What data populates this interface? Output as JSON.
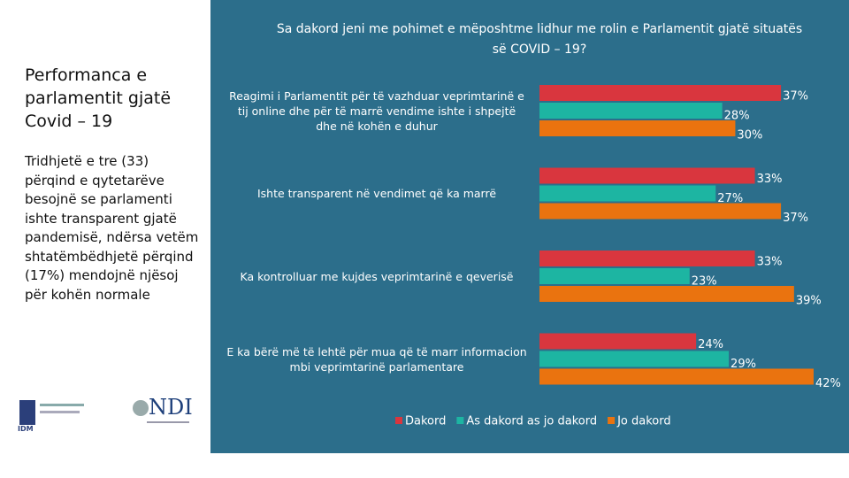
{
  "slide": {
    "title": "Performanca e parlamentit gjatë Covid – 19",
    "body": "Tridhjetë e tre (33) përqind e qytetarëve besojnë se parlamenti ishte transparent gjatë pandemisë, ndërsa vetëm shtatëmbëdhjetë përqind (17%) mendojnë njësoj për kohën normale",
    "logo_left": "IDM",
    "logo_right": "NDI"
  },
  "chart_data": {
    "type": "hbar",
    "title": "Sa dakord jeni me pohimet e mëposhtme lidhur me rolin e Parlamentit gjatë situatës së COVID – 19?",
    "categories": [
      "Reagimi i Parlamentit për të vazhduar veprimtarinë e tij online dhe për të marrë vendime ishte i shpejtë dhe në kohën e duhur",
      "Ishte transparent në vendimet që ka marrë",
      "Ka kontrolluar me kujdes veprimtarinë e qeverisë",
      "E ka bërë më të lehtë për mua që të marr informacion mbi veprimtarinë parlamentare"
    ],
    "series": [
      {
        "name": "Dakord",
        "color": "#d9363e",
        "values": [
          37,
          33,
          33,
          24
        ],
        "value_labels": [
          "37%",
          "33%",
          "33%",
          "24%"
        ]
      },
      {
        "name": "As dakord as jo dakord",
        "color": "#1db5a2",
        "values": [
          28,
          27,
          23,
          29
        ],
        "value_labels": [
          "28%",
          "27%",
          "23%",
          "29%"
        ]
      },
      {
        "name": "Jo dakord",
        "color": "#ea730f",
        "values": [
          30,
          37,
          39,
          42
        ],
        "value_labels": [
          "30%",
          "37%",
          "39%",
          "42%"
        ]
      }
    ],
    "legend": "bottom"
  }
}
